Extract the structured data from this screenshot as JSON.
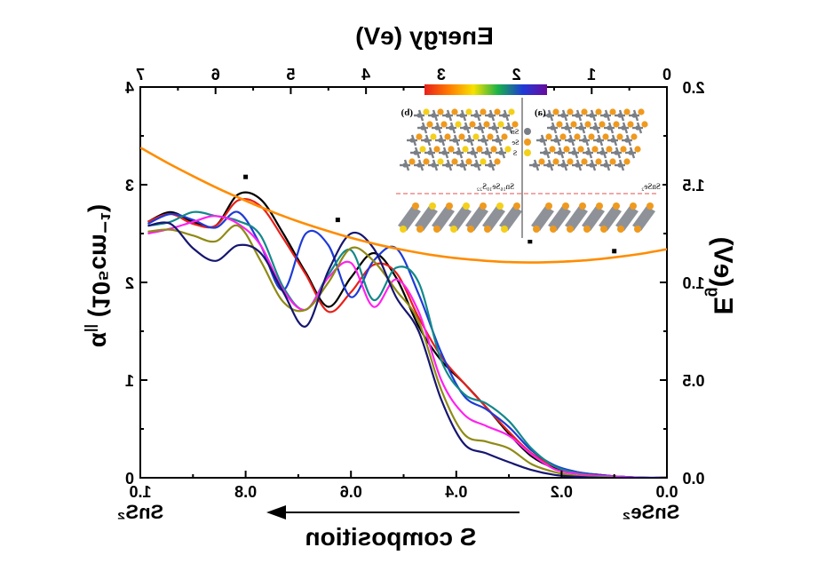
{
  "chart_data": {
    "type": "line",
    "mirrored": true,
    "top_axis": {
      "label": "Energy (eV)",
      "range": [
        0,
        7
      ],
      "ticks": [
        "0",
        "1",
        "2",
        "3",
        "4",
        "5",
        "6",
        "7"
      ]
    },
    "bottom_axis": {
      "label": "S composition",
      "range": [
        0.0,
        1.0
      ],
      "ticks": [
        "0.0",
        "0.2",
        "0.4",
        "0.6",
        "0.8",
        "1.0"
      ],
      "end_labels": {
        "left": "SnS₂",
        "right": "SnSe₂"
      }
    },
    "left_axis": {
      "label": "α",
      "subscript": "||",
      "label_rest": " (10⁵cm⁻¹)",
      "range": [
        0,
        4
      ],
      "ticks": [
        "0",
        "1",
        "2",
        "3",
        "4"
      ]
    },
    "right_axis": {
      "label": "E",
      "subscript": "g",
      "label_rest": "(eV)",
      "range": [
        0.0,
        2.0
      ],
      "ticks": [
        "0.0",
        "0.5",
        "1.0",
        "1.5",
        "2.0"
      ]
    },
    "colorbar": {
      "ticks": [
        "0",
        "1",
        "2",
        "3"
      ],
      "colors": [
        "#e8201a",
        "#ff7b00",
        "#f7e200",
        "#19b14a",
        "#1e3bd6",
        "#6a0a9e"
      ]
    },
    "absorption_series": [
      {
        "color": "#000000",
        "x": [
          0.0,
          0.3,
          0.6,
          0.9,
          1.2,
          1.5,
          1.8,
          2.1,
          2.4,
          2.7,
          3.0,
          3.3,
          3.6,
          3.9,
          4.2,
          4.5,
          4.8,
          5.1,
          5.4,
          5.7,
          6.0,
          6.3,
          6.6,
          6.9
        ],
        "y": [
          0.0,
          0.0,
          0.01,
          0.03,
          0.05,
          0.1,
          0.22,
          0.45,
          0.72,
          0.97,
          1.2,
          1.55,
          2.05,
          2.3,
          2.05,
          1.75,
          2.1,
          2.5,
          2.85,
          2.9,
          2.58,
          2.62,
          2.72,
          2.62
        ]
      },
      {
        "color": "#e8201a",
        "x": [
          0.0,
          0.3,
          0.6,
          0.9,
          1.2,
          1.5,
          1.8,
          2.1,
          2.4,
          2.7,
          3.0,
          3.3,
          3.6,
          3.9,
          4.2,
          4.5,
          4.8,
          5.1,
          5.4,
          5.7,
          6.0,
          6.3,
          6.6,
          6.9
        ],
        "y": [
          0.0,
          0.0,
          0.01,
          0.03,
          0.06,
          0.12,
          0.25,
          0.47,
          0.72,
          0.97,
          1.24,
          1.64,
          2.1,
          2.18,
          1.9,
          1.7,
          2.08,
          2.45,
          2.78,
          2.84,
          2.58,
          2.6,
          2.7,
          2.62
        ]
      },
      {
        "color": "#1e3bd6",
        "x": [
          0.0,
          0.3,
          0.6,
          0.9,
          1.2,
          1.5,
          1.8,
          2.1,
          2.4,
          2.7,
          3.0,
          3.3,
          3.6,
          3.9,
          4.2,
          4.5,
          4.8,
          5.1,
          5.4,
          5.7,
          6.0,
          6.3,
          6.6,
          6.9
        ],
        "y": [
          0.0,
          0.0,
          0.01,
          0.03,
          0.06,
          0.13,
          0.28,
          0.52,
          0.7,
          0.84,
          1.28,
          1.88,
          2.35,
          2.22,
          1.85,
          2.38,
          2.5,
          1.92,
          2.38,
          2.72,
          2.56,
          2.64,
          2.7,
          2.6
        ]
      },
      {
        "color": "#12888a",
        "x": [
          0.0,
          0.3,
          0.6,
          0.9,
          1.2,
          1.5,
          1.8,
          2.1,
          2.4,
          2.7,
          3.0,
          3.3,
          3.6,
          3.9,
          4.2,
          4.5,
          4.8,
          5.1,
          5.4,
          5.7,
          6.0,
          6.3,
          6.6,
          6.9
        ],
        "y": [
          0.0,
          0.0,
          0.01,
          0.02,
          0.05,
          0.12,
          0.3,
          0.58,
          0.76,
          0.86,
          1.2,
          2.0,
          2.15,
          1.82,
          2.33,
          2.08,
          1.72,
          1.95,
          2.48,
          2.63,
          2.68,
          2.72,
          2.62,
          2.58
        ]
      },
      {
        "color": "#ff22ee",
        "x": [
          0.0,
          0.3,
          0.6,
          0.9,
          1.2,
          1.5,
          1.8,
          2.1,
          2.4,
          2.7,
          3.0,
          3.3,
          3.6,
          3.9,
          4.2,
          4.5,
          4.8,
          5.1,
          5.4,
          5.7,
          6.0,
          6.3,
          6.6,
          6.9
        ],
        "y": [
          0.0,
          0.0,
          0.01,
          0.02,
          0.04,
          0.09,
          0.24,
          0.43,
          0.53,
          0.65,
          1.0,
          1.7,
          2.03,
          1.75,
          2.2,
          2.05,
          1.72,
          1.92,
          2.38,
          2.6,
          2.68,
          2.62,
          2.55,
          2.5
        ]
      },
      {
        "color": "#8f8a15",
        "x": [
          0.0,
          0.3,
          0.6,
          0.9,
          1.2,
          1.5,
          1.8,
          2.1,
          2.4,
          2.7,
          3.0,
          3.3,
          3.6,
          3.9,
          4.2,
          4.5,
          4.8,
          5.1,
          5.4,
          5.7,
          6.0,
          6.3,
          6.6,
          6.9
        ],
        "y": [
          0.0,
          0.0,
          0.0,
          0.01,
          0.02,
          0.06,
          0.14,
          0.3,
          0.37,
          0.45,
          0.9,
          1.6,
          1.92,
          2.22,
          2.35,
          2.0,
          1.72,
          1.8,
          2.22,
          2.58,
          2.42,
          2.48,
          2.54,
          2.52
        ]
      },
      {
        "color": "#161670",
        "x": [
          0.0,
          0.3,
          0.6,
          0.9,
          1.2,
          1.5,
          1.8,
          2.1,
          2.4,
          2.7,
          3.0,
          3.3,
          3.6,
          3.9,
          4.2,
          4.5,
          4.8,
          5.1,
          5.4,
          5.7,
          6.0,
          6.3,
          6.6,
          6.9
        ],
        "y": [
          0.0,
          0.0,
          0.0,
          0.0,
          0.01,
          0.03,
          0.08,
          0.16,
          0.25,
          0.35,
          0.8,
          1.5,
          1.85,
          2.35,
          2.5,
          2.12,
          1.55,
          1.9,
          2.3,
          2.38,
          2.22,
          2.35,
          2.6,
          2.58
        ]
      }
    ],
    "bandgap_series": {
      "color": "#ff8c00",
      "x": [
        0.0,
        0.05,
        0.1,
        0.15,
        0.2,
        0.25,
        0.3,
        0.35,
        0.4,
        0.45,
        0.5,
        0.55,
        0.6,
        0.65,
        0.7,
        0.75,
        0.8,
        0.85,
        0.9,
        0.95,
        1.0
      ],
      "y": [
        1.17,
        1.146,
        1.128,
        1.114,
        1.106,
        1.102,
        1.104,
        1.112,
        1.124,
        1.142,
        1.166,
        1.194,
        1.228,
        1.268,
        1.312,
        1.362,
        1.418,
        1.478,
        1.544,
        1.614,
        1.69
      ]
    },
    "bandgap_points": {
      "color": "#000000",
      "x": [
        0.1,
        0.26,
        0.5,
        0.625,
        0.8
      ],
      "y": [
        1.16,
        1.21,
        1.26,
        1.32,
        1.54
      ]
    },
    "inset": {
      "panel_a": {
        "label": "(a)",
        "formula": "SnSe₂"
      },
      "panel_b": {
        "label": "(b)",
        "formula": "Sn₁₆Se₁₀S₂₂"
      },
      "legend": [
        "Sn",
        "Se",
        "S"
      ],
      "colors": {
        "Sn": "#7a7f86",
        "Se": "#ef9a1e",
        "S": "#f4d01a"
      }
    }
  }
}
